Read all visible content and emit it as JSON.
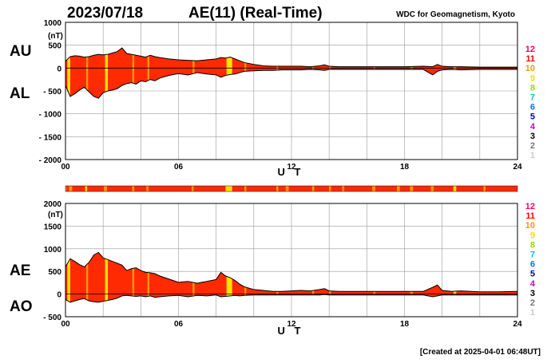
{
  "header": {
    "date": "2023/07/18",
    "title": "AE(11) (Real-Time)",
    "source": "WDC for Geomagnetism, Kyoto"
  },
  "footer": {
    "created": "[Created at 2025-04-01 06:48UT]"
  },
  "colors": {
    "fill_main": "#ff2a00",
    "fill_orange": "#ff9900",
    "fill_yellow": "#ffe000",
    "grid": "#999999",
    "axis": "#000000"
  },
  "scale_legend": [
    {
      "label": "12",
      "color": "#ff0066"
    },
    {
      "label": "11",
      "color": "#ff0000"
    },
    {
      "label": "10",
      "color": "#ff9900"
    },
    {
      "label": "9",
      "color": "#ffdd00"
    },
    {
      "label": "8",
      "color": "#99dd00"
    },
    {
      "label": "7",
      "color": "#00cccc"
    },
    {
      "label": "6",
      "color": "#0077ff"
    },
    {
      "label": "5",
      "color": "#0000cc"
    },
    {
      "label": "4",
      "color": "#cc00cc"
    },
    {
      "label": "3",
      "color": "#000000"
    },
    {
      "label": "2",
      "color": "#777777"
    },
    {
      "label": "1",
      "color": "#cccccc"
    }
  ],
  "chart_data": [
    {
      "type": "area",
      "series_labels": [
        "AU",
        "AL"
      ],
      "ylabel": "(nT)",
      "xlabel": "U T",
      "ylim": [
        -2000,
        1000
      ],
      "yticks": [
        1000,
        500,
        0,
        -500,
        -1000,
        -1500,
        -2000
      ],
      "ytick_labels": [
        "1000",
        "500",
        "0",
        "- 500",
        "- 1000",
        "- 1500",
        "- 2000"
      ],
      "xlim": [
        0,
        24
      ],
      "xticks": [
        "00",
        "06",
        "12",
        "18",
        "24"
      ],
      "grid": true,
      "x": [
        0,
        0.25,
        0.5,
        0.75,
        1,
        1.25,
        1.5,
        1.75,
        2,
        2.25,
        2.5,
        2.75,
        3,
        3.25,
        3.5,
        3.75,
        4,
        4.25,
        4.5,
        4.75,
        5,
        5.5,
        6,
        6.5,
        7,
        7.5,
        8,
        8.25,
        8.5,
        8.75,
        9,
        9.25,
        9.5,
        10,
        10.5,
        11,
        11.5,
        12,
        12.5,
        13,
        13.5,
        13.75,
        14,
        14.5,
        15,
        16,
        17,
        18,
        19,
        19.5,
        19.75,
        20,
        20.5,
        21,
        22,
        23,
        24
      ],
      "au": [
        150,
        250,
        270,
        260,
        240,
        250,
        280,
        300,
        290,
        300,
        330,
        360,
        440,
        320,
        300,
        280,
        260,
        240,
        280,
        250,
        230,
        200,
        180,
        170,
        160,
        180,
        200,
        230,
        220,
        240,
        200,
        160,
        120,
        80,
        50,
        40,
        40,
        40,
        40,
        30,
        50,
        70,
        40,
        30,
        30,
        30,
        30,
        30,
        40,
        30,
        80,
        40,
        30,
        30,
        20,
        20,
        20
      ],
      "al": [
        -380,
        -620,
        -560,
        -480,
        -420,
        -520,
        -620,
        -660,
        -540,
        -500,
        -480,
        -450,
        -380,
        -340,
        -320,
        -350,
        -280,
        -300,
        -250,
        -280,
        -220,
        -160,
        -120,
        -150,
        -100,
        -130,
        -150,
        -200,
        -160,
        -140,
        -130,
        -100,
        -70,
        -60,
        -50,
        -50,
        -40,
        -40,
        -40,
        -30,
        -40,
        -50,
        -30,
        -30,
        -30,
        -30,
        -30,
        -30,
        -30,
        -150,
        -70,
        -40,
        -30,
        -40,
        -30,
        -30,
        -30
      ]
    },
    {
      "type": "area",
      "series_labels": [
        "AE",
        "AO"
      ],
      "ylabel": "(nT)",
      "xlabel": "U T",
      "ylim": [
        -500,
        2000
      ],
      "yticks": [
        2000,
        1500,
        1000,
        500,
        0,
        -500
      ],
      "ytick_labels": [
        "2000",
        "1500",
        "1000",
        "500",
        "0",
        "- 500"
      ],
      "xlim": [
        0,
        24
      ],
      "xticks": [
        "00",
        "06",
        "12",
        "18",
        "24"
      ],
      "grid": true,
      "x": [
        0,
        0.25,
        0.5,
        0.75,
        1,
        1.25,
        1.5,
        1.75,
        2,
        2.25,
        2.5,
        2.75,
        3,
        3.25,
        3.5,
        3.75,
        4,
        4.25,
        4.5,
        4.75,
        5,
        5.5,
        6,
        6.5,
        7,
        7.5,
        8,
        8.25,
        8.5,
        8.75,
        9,
        9.25,
        9.5,
        10,
        10.5,
        11,
        11.5,
        12,
        12.5,
        13,
        13.5,
        13.75,
        14,
        14.5,
        15,
        16,
        17,
        18,
        19,
        19.5,
        19.75,
        20,
        20.5,
        21,
        22,
        23,
        24
      ],
      "ae": [
        600,
        780,
        720,
        650,
        600,
        700,
        860,
        920,
        800,
        760,
        720,
        680,
        640,
        520,
        560,
        580,
        520,
        480,
        470,
        450,
        400,
        330,
        260,
        280,
        240,
        280,
        320,
        480,
        400,
        360,
        300,
        220,
        160,
        100,
        80,
        60,
        60,
        70,
        80,
        70,
        100,
        120,
        70,
        60,
        60,
        60,
        60,
        60,
        60,
        150,
        200,
        80,
        60,
        70,
        50,
        50,
        60
      ],
      "ao": [
        -120,
        -180,
        -150,
        -120,
        -100,
        -150,
        -170,
        -180,
        -160,
        -140,
        -120,
        -90,
        -40,
        -30,
        -40,
        -50,
        -40,
        -60,
        -40,
        -70,
        -60,
        -40,
        -30,
        -60,
        -30,
        -40,
        -20,
        -60,
        -50,
        -40,
        -30,
        -40,
        -30,
        -20,
        -20,
        -20,
        -20,
        -20,
        -20,
        -20,
        -20,
        -10,
        -20,
        -20,
        -20,
        -20,
        -20,
        -20,
        -20,
        -60,
        -40,
        -20,
        -20,
        -20,
        -20,
        -20,
        -20
      ]
    }
  ],
  "activity_bar": {
    "segments": [
      {
        "from": 0,
        "to": 0.05,
        "level": "orange"
      },
      {
        "from": 0.05,
        "to": 0.2,
        "level": "main"
      },
      {
        "from": 0.2,
        "to": 0.35,
        "level": "orange"
      },
      {
        "from": 0.35,
        "to": 1.05,
        "level": "main"
      },
      {
        "from": 1.05,
        "to": 1.15,
        "level": "yellow"
      },
      {
        "from": 1.15,
        "to": 2.05,
        "level": "main"
      },
      {
        "from": 2.05,
        "to": 2.2,
        "level": "orange"
      },
      {
        "from": 2.2,
        "to": 3.55,
        "level": "main"
      },
      {
        "from": 3.55,
        "to": 3.65,
        "level": "orange"
      },
      {
        "from": 3.65,
        "to": 4.3,
        "level": "main"
      },
      {
        "from": 4.3,
        "to": 4.4,
        "level": "orange"
      },
      {
        "from": 4.4,
        "to": 6.7,
        "level": "main"
      },
      {
        "from": 6.7,
        "to": 6.8,
        "level": "orange"
      },
      {
        "from": 6.8,
        "to": 8.5,
        "level": "main"
      },
      {
        "from": 8.5,
        "to": 8.85,
        "level": "yellow"
      },
      {
        "from": 8.85,
        "to": 9.5,
        "level": "main"
      },
      {
        "from": 9.5,
        "to": 9.6,
        "level": "orange"
      },
      {
        "from": 9.6,
        "to": 11.2,
        "level": "main"
      },
      {
        "from": 11.2,
        "to": 11.3,
        "level": "orange"
      },
      {
        "from": 11.3,
        "to": 11.7,
        "level": "main"
      },
      {
        "from": 11.7,
        "to": 11.85,
        "level": "orange"
      },
      {
        "from": 11.85,
        "to": 13.1,
        "level": "main"
      },
      {
        "from": 13.1,
        "to": 13.2,
        "level": "orange"
      },
      {
        "from": 13.2,
        "to": 14.0,
        "level": "main"
      },
      {
        "from": 14.0,
        "to": 14.1,
        "level": "orange"
      },
      {
        "from": 14.1,
        "to": 14.7,
        "level": "main"
      },
      {
        "from": 14.7,
        "to": 14.8,
        "level": "orange"
      },
      {
        "from": 14.8,
        "to": 16.3,
        "level": "main"
      },
      {
        "from": 16.3,
        "to": 16.45,
        "level": "orange"
      },
      {
        "from": 16.45,
        "to": 17.6,
        "level": "main"
      },
      {
        "from": 17.6,
        "to": 17.75,
        "level": "orange"
      },
      {
        "from": 17.75,
        "to": 18.3,
        "level": "main"
      },
      {
        "from": 18.3,
        "to": 18.45,
        "level": "orange"
      },
      {
        "from": 18.45,
        "to": 19.4,
        "level": "main"
      },
      {
        "from": 19.4,
        "to": 19.55,
        "level": "orange"
      },
      {
        "from": 19.55,
        "to": 20.6,
        "level": "main"
      },
      {
        "from": 20.6,
        "to": 20.75,
        "level": "yellow"
      },
      {
        "from": 20.75,
        "to": 22.2,
        "level": "main"
      },
      {
        "from": 22.2,
        "to": 22.3,
        "level": "orange"
      },
      {
        "from": 22.3,
        "to": 24,
        "level": "main"
      }
    ]
  },
  "vertical_stripes_top": [
    {
      "from": 0.1,
      "to": 0.25,
      "level": "yellow"
    },
    {
      "from": 1.1,
      "to": 1.2,
      "level": "orange"
    },
    {
      "from": 2.1,
      "to": 2.25,
      "level": "yellow"
    },
    {
      "from": 3.55,
      "to": 3.65,
      "level": "orange"
    },
    {
      "from": 4.35,
      "to": 4.45,
      "level": "orange"
    },
    {
      "from": 6.75,
      "to": 6.85,
      "level": "orange"
    },
    {
      "from": 8.55,
      "to": 8.85,
      "level": "yellow"
    },
    {
      "from": 9.5,
      "to": 9.6,
      "level": "orange"
    },
    {
      "from": 11.2,
      "to": 11.3,
      "level": "orange"
    },
    {
      "from": 13.1,
      "to": 13.2,
      "level": "orange"
    },
    {
      "from": 14.0,
      "to": 14.1,
      "level": "orange"
    },
    {
      "from": 16.35,
      "to": 16.45,
      "level": "orange"
    },
    {
      "from": 18.3,
      "to": 18.45,
      "level": "orange"
    },
    {
      "from": 20.6,
      "to": 20.75,
      "level": "yellow"
    }
  ]
}
